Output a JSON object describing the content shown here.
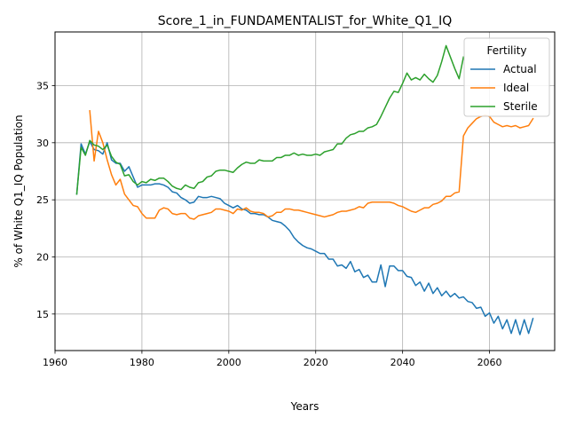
{
  "chart_data": {
    "type": "line",
    "title": "Score_1_in_FUNDAMENTALIST_for_White_Q1_IQ",
    "xlabel": "Years",
    "ylabel": "% of White Q1_IQ Population",
    "xlim": [
      1960,
      2075
    ],
    "ylim": [
      11.8,
      39.7
    ],
    "x_ticks": [
      1960,
      1980,
      2000,
      2020,
      2040,
      2060
    ],
    "y_ticks": [
      15,
      20,
      25,
      30,
      35
    ],
    "grid": true,
    "legend": {
      "title": "Fertility",
      "placement": "top-right"
    },
    "x": [
      1965,
      1966,
      1967,
      1968,
      1969,
      1970,
      1971,
      1972,
      1973,
      1974,
      1975,
      1976,
      1977,
      1978,
      1979,
      1980,
      1981,
      1982,
      1983,
      1984,
      1985,
      1986,
      1987,
      1988,
      1989,
      1990,
      1991,
      1992,
      1993,
      1994,
      1995,
      1996,
      1997,
      1998,
      1999,
      2000,
      2001,
      2002,
      2003,
      2004,
      2005,
      2006,
      2007,
      2008,
      2009,
      2010,
      2011,
      2012,
      2013,
      2014,
      2015,
      2016,
      2017,
      2018,
      2019,
      2020,
      2021,
      2022,
      2023,
      2024,
      2025,
      2026,
      2027,
      2028,
      2029,
      2030,
      2031,
      2032,
      2033,
      2034,
      2035,
      2036,
      2037,
      2038,
      2039,
      2040,
      2041,
      2042,
      2043,
      2044,
      2045,
      2046,
      2047,
      2048,
      2049,
      2050,
      2051,
      2052,
      2053,
      2054,
      2055,
      2056,
      2057,
      2058,
      2059,
      2060,
      2061,
      2062,
      2063,
      2064,
      2065,
      2066,
      2067,
      2068,
      2069,
      2070
    ],
    "series": [
      {
        "name": "Actual",
        "color": "#1f77b4",
        "values": [
          25.5,
          29.9,
          29.0,
          30.1,
          29.4,
          29.3,
          29.0,
          30.0,
          28.5,
          28.2,
          28.2,
          27.5,
          27.9,
          27.0,
          26.1,
          26.3,
          26.3,
          26.3,
          26.4,
          26.4,
          26.3,
          26.1,
          25.7,
          25.6,
          25.2,
          25.0,
          24.7,
          24.8,
          25.3,
          25.2,
          25.2,
          25.3,
          25.2,
          25.1,
          24.7,
          24.5,
          24.3,
          24.5,
          24.2,
          24.1,
          23.8,
          23.8,
          23.7,
          23.7,
          23.5,
          23.2,
          23.1,
          23.0,
          22.7,
          22.3,
          21.7,
          21.3,
          21.0,
          20.8,
          20.7,
          20.5,
          20.3,
          20.3,
          19.8,
          19.8,
          19.2,
          19.3,
          19.0,
          19.6,
          18.7,
          18.9,
          18.2,
          18.4,
          17.8,
          17.8,
          19.3,
          17.4,
          19.2,
          19.2,
          18.8,
          18.8,
          18.3,
          18.2,
          17.5,
          17.8,
          17.0,
          17.7,
          16.8,
          17.3,
          16.6,
          17.0,
          16.5,
          16.8,
          16.4,
          16.5,
          16.1,
          16.0,
          15.5,
          15.6,
          14.8,
          15.1,
          14.2,
          14.8,
          13.7,
          14.5,
          13.3,
          14.5,
          13.2,
          14.5,
          13.3,
          14.6
        ]
      },
      {
        "name": "Ideal",
        "color": "#ff7f0e",
        "values": [
          null,
          null,
          null,
          32.8,
          28.4,
          31.0,
          30.0,
          28.5,
          27.2,
          26.3,
          26.8,
          25.5,
          25.0,
          24.5,
          24.4,
          23.8,
          23.4,
          23.4,
          23.4,
          24.1,
          24.3,
          24.2,
          23.8,
          23.7,
          23.8,
          23.8,
          23.4,
          23.3,
          23.6,
          23.7,
          23.8,
          23.9,
          24.2,
          24.2,
          24.1,
          24.0,
          23.8,
          24.2,
          24.1,
          24.3,
          24.0,
          23.9,
          23.9,
          23.8,
          23.5,
          23.6,
          23.9,
          23.9,
          24.2,
          24.2,
          24.1,
          24.1,
          24.0,
          23.9,
          23.8,
          23.7,
          23.6,
          23.5,
          23.6,
          23.7,
          23.9,
          24.0,
          24.0,
          24.1,
          24.2,
          24.4,
          24.3,
          24.7,
          24.8,
          24.8,
          24.8,
          24.8,
          24.8,
          24.7,
          24.5,
          24.4,
          24.2,
          24.0,
          23.9,
          24.1,
          24.3,
          24.3,
          24.6,
          24.7,
          24.9,
          25.3,
          25.3,
          25.6,
          25.7,
          30.6,
          31.3,
          31.7,
          32.1,
          32.3,
          32.4,
          32.3,
          31.8,
          31.6,
          31.4,
          31.5,
          31.4,
          31.5,
          31.3,
          31.4,
          31.5,
          32.1
        ]
      },
      {
        "name": "Sterile",
        "color": "#2ca02c",
        "values": [
          25.5,
          29.6,
          28.9,
          30.2,
          29.8,
          29.7,
          29.4,
          29.8,
          28.8,
          28.3,
          28.1,
          27.1,
          27.2,
          26.6,
          26.3,
          26.6,
          26.5,
          26.8,
          26.7,
          26.9,
          26.9,
          26.6,
          26.2,
          26.0,
          25.9,
          26.3,
          26.1,
          26.0,
          26.5,
          26.6,
          27.0,
          27.1,
          27.5,
          27.6,
          27.6,
          27.5,
          27.4,
          27.8,
          28.1,
          28.3,
          28.2,
          28.2,
          28.5,
          28.4,
          28.4,
          28.4,
          28.7,
          28.7,
          28.9,
          28.9,
          29.1,
          28.9,
          29.0,
          28.9,
          28.9,
          29.0,
          28.9,
          29.2,
          29.3,
          29.4,
          29.9,
          29.9,
          30.4,
          30.7,
          30.8,
          31.0,
          31.0,
          31.3,
          31.4,
          31.6,
          32.3,
          33.1,
          33.9,
          34.5,
          34.4,
          35.2,
          36.1,
          35.5,
          35.7,
          35.5,
          36.0,
          35.6,
          35.3,
          35.9,
          37.1,
          38.5,
          37.5,
          36.5,
          35.6,
          37.5,
          null,
          null,
          null,
          null,
          null,
          null,
          null,
          null,
          null,
          null,
          null,
          null,
          null,
          null,
          null,
          null
        ]
      }
    ]
  }
}
